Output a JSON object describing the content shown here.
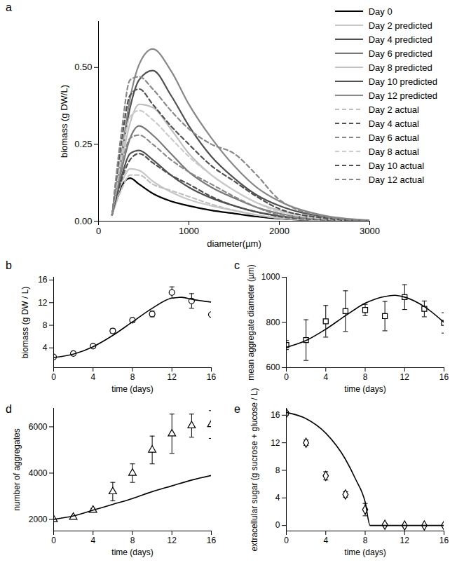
{
  "chart_data": [
    {
      "type": "line",
      "title": "a",
      "x_label": "diameter(µm)",
      "y_label": "biomass (g DW/L)",
      "x": [
        150,
        250,
        350,
        450,
        600,
        800,
        1000,
        1250,
        1500,
        1750,
        2000,
        2500,
        3000
      ],
      "xlim": [
        0,
        3000
      ],
      "xticks": [
        0,
        1000,
        2000,
        3000
      ],
      "ylim": [
        0,
        0.65
      ],
      "yticks": [
        {
          "value": 0,
          "label": "0.00"
        },
        {
          "value": 0.25,
          "label": "0.25"
        },
        {
          "value": 0.5,
          "label": "0.50"
        }
      ],
      "legend": "top-right",
      "series": [
        {
          "name": "Day 0",
          "color": "#000000",
          "line_style": "solid",
          "values": [
            0.02,
            0.11,
            0.14,
            0.12,
            0.09,
            0.065,
            0.05,
            0.035,
            0.025,
            0.015,
            0.008,
            0.002,
            0
          ]
        },
        {
          "name": "Day 2 predicted",
          "color": "#c8c8c8",
          "line_style": "solid",
          "values": [
            0.02,
            0.12,
            0.17,
            0.165,
            0.13,
            0.095,
            0.07,
            0.05,
            0.035,
            0.02,
            0.01,
            0.003,
            0
          ]
        },
        {
          "name": "Day 4 predicted",
          "color": "#505050",
          "line_style": "solid",
          "values": [
            0.02,
            0.14,
            0.22,
            0.23,
            0.2,
            0.15,
            0.11,
            0.075,
            0.05,
            0.03,
            0.017,
            0.005,
            0
          ]
        },
        {
          "name": "Day 6 predicted",
          "color": "#787878",
          "line_style": "solid",
          "values": [
            0.02,
            0.16,
            0.27,
            0.31,
            0.28,
            0.22,
            0.16,
            0.11,
            0.075,
            0.045,
            0.025,
            0.007,
            0
          ]
        },
        {
          "name": "Day 8 predicted",
          "color": "#c0c0c0",
          "line_style": "solid",
          "values": [
            0.02,
            0.18,
            0.32,
            0.38,
            0.37,
            0.3,
            0.22,
            0.15,
            0.1,
            0.06,
            0.035,
            0.01,
            0
          ]
        },
        {
          "name": "Day 10 predicted",
          "color": "#505050",
          "line_style": "solid",
          "values": [
            0.02,
            0.2,
            0.37,
            0.46,
            0.49,
            0.41,
            0.31,
            0.21,
            0.14,
            0.085,
            0.05,
            0.014,
            0.002
          ]
        },
        {
          "name": "Day 12 predicted",
          "color": "#888888",
          "line_style": "solid",
          "values": [
            0.02,
            0.21,
            0.4,
            0.51,
            0.56,
            0.49,
            0.38,
            0.27,
            0.18,
            0.11,
            0.065,
            0.018,
            0.003
          ]
        },
        {
          "name": "Day 2 actual",
          "color": "#c0c0c0",
          "line_style": "dashed",
          "values": [
            0.02,
            0.1,
            0.15,
            0.15,
            0.12,
            0.1,
            0.08,
            0.055,
            0.035,
            0.02,
            0.01,
            0.003,
            0
          ]
        },
        {
          "name": "Day 4 actual",
          "color": "#505050",
          "line_style": "dashed",
          "values": [
            0.02,
            0.13,
            0.2,
            0.22,
            0.19,
            0.15,
            0.12,
            0.08,
            0.05,
            0.03,
            0.015,
            0.004,
            0
          ]
        },
        {
          "name": "Day 6 actual",
          "color": "#888888",
          "line_style": "dashed",
          "values": [
            0.02,
            0.17,
            0.27,
            0.28,
            0.25,
            0.2,
            0.16,
            0.12,
            0.08,
            0.045,
            0.02,
            0.005,
            0
          ]
        },
        {
          "name": "Day 8 actual",
          "color": "#cccccc",
          "line_style": "dashed",
          "values": [
            0.02,
            0.2,
            0.34,
            0.36,
            0.33,
            0.27,
            0.21,
            0.15,
            0.1,
            0.06,
            0.03,
            0.008,
            0
          ]
        },
        {
          "name": "Day 10 actual",
          "color": "#505050",
          "line_style": "dashed",
          "values": [
            0.02,
            0.25,
            0.41,
            0.43,
            0.38,
            0.31,
            0.25,
            0.18,
            0.13,
            0.08,
            0.04,
            0.01,
            0
          ]
        },
        {
          "name": "Day 12 actual",
          "color": "#888888",
          "line_style": "dashed",
          "values": [
            0.02,
            0.28,
            0.46,
            0.47,
            0.43,
            0.36,
            0.3,
            0.25,
            0.22,
            0.15,
            0.07,
            0.015,
            0
          ]
        }
      ]
    },
    {
      "type": "line",
      "title": "b",
      "x_label": "time (days)",
      "y_label": "biomass (g DW / L)",
      "xlim": [
        0,
        16
      ],
      "xticks": [
        0,
        4,
        8,
        12,
        16
      ],
      "ylim": [
        0.5,
        16.5
      ],
      "yticks": [
        4,
        8,
        12,
        16
      ],
      "series": [
        {
          "type": "scatter",
          "marker": "circle",
          "color": "#000000",
          "x": [
            0,
            2,
            4,
            6,
            8,
            10,
            12,
            14,
            16
          ],
          "values": [
            2.4,
            3.0,
            4.3,
            7.0,
            8.9,
            10.0,
            13.8,
            12.3,
            9.9
          ],
          "error": [
            0.2,
            0.2,
            0.3,
            0.4,
            0.4,
            0.5,
            1.0,
            1.3,
            0.2
          ]
        },
        {
          "type": "line",
          "color": "#000000",
          "x": [
            0,
            2,
            4,
            6,
            8,
            10,
            12,
            13,
            14,
            16
          ],
          "values": [
            2.3,
            2.9,
            4.2,
            6.2,
            8.6,
            11.0,
            12.8,
            12.95,
            12.6,
            12.1
          ]
        }
      ]
    },
    {
      "type": "line",
      "title": "c",
      "x_label": "time (days)",
      "y_label": "mean aggregate diameter (µm)",
      "xlim": [
        0,
        16
      ],
      "xticks": [
        0,
        4,
        8,
        12,
        16
      ],
      "ylim": [
        600,
        1000
      ],
      "yticks": [
        600,
        800,
        1000
      ],
      "series": [
        {
          "type": "scatter",
          "marker": "square",
          "color": "#000000",
          "x": [
            0,
            2,
            4,
            6,
            8,
            10,
            12,
            14,
            16
          ],
          "values": [
            700,
            722,
            805,
            850,
            855,
            828,
            912,
            860,
            798
          ],
          "error": [
            20,
            90,
            70,
            90,
            25,
            65,
            55,
            35,
            45
          ]
        },
        {
          "type": "line",
          "color": "#000000",
          "x": [
            0,
            2,
            4,
            6,
            8,
            10,
            11,
            12,
            14,
            16
          ],
          "values": [
            690,
            720,
            770,
            830,
            885,
            915,
            920,
            912,
            870,
            800
          ]
        }
      ]
    },
    {
      "type": "line",
      "title": "d",
      "x_label": "time (days)",
      "y_label": "number of aggregates",
      "xlim": [
        0,
        16
      ],
      "xticks": [
        0,
        4,
        8,
        12,
        16
      ],
      "ylim": [
        1500,
        6800
      ],
      "yticks": [
        2000,
        4000,
        6000
      ],
      "series": [
        {
          "type": "scatter",
          "marker": "triangle",
          "color": "#000000",
          "x": [
            0,
            2,
            4,
            6,
            8,
            10,
            12,
            14,
            16
          ],
          "values": [
            2000,
            2100,
            2400,
            3200,
            4000,
            5000,
            5700,
            6050,
            6100
          ],
          "error": [
            40,
            60,
            80,
            400,
            400,
            600,
            850,
            500,
            600
          ]
        },
        {
          "type": "line",
          "color": "#000000",
          "x": [
            0,
            2,
            4,
            6,
            8,
            10,
            12,
            14,
            16
          ],
          "values": [
            2000,
            2150,
            2400,
            2650,
            2900,
            3200,
            3450,
            3700,
            3900
          ]
        }
      ]
    },
    {
      "type": "line",
      "title": "e",
      "x_label": "time (days)",
      "y_label": "extracellular sugar (g sucrose + glucose / L)",
      "xlim": [
        0,
        16
      ],
      "xticks": [
        0,
        4,
        8,
        12,
        16
      ],
      "ylim": [
        -0.8,
        17
      ],
      "yticks": [
        0,
        4,
        8,
        12,
        16
      ],
      "series": [
        {
          "type": "scatter",
          "marker": "diamond",
          "color": "#000000",
          "x": [
            0,
            2,
            4,
            6,
            8,
            10,
            12,
            14,
            16
          ],
          "values": [
            16.3,
            12.0,
            7.2,
            4.5,
            2.3,
            0.1,
            0,
            0,
            0
          ],
          "error": [
            0.3,
            0.4,
            0.6,
            0.4,
            0.9,
            0.2,
            0.1,
            0.1,
            0.1
          ]
        },
        {
          "type": "line",
          "color": "#000000",
          "x": [
            0,
            2,
            4,
            6,
            7,
            8,
            8.5,
            16
          ],
          "values": [
            16.4,
            15.5,
            13.4,
            9.6,
            6.8,
            3.4,
            0,
            0
          ]
        }
      ]
    }
  ]
}
